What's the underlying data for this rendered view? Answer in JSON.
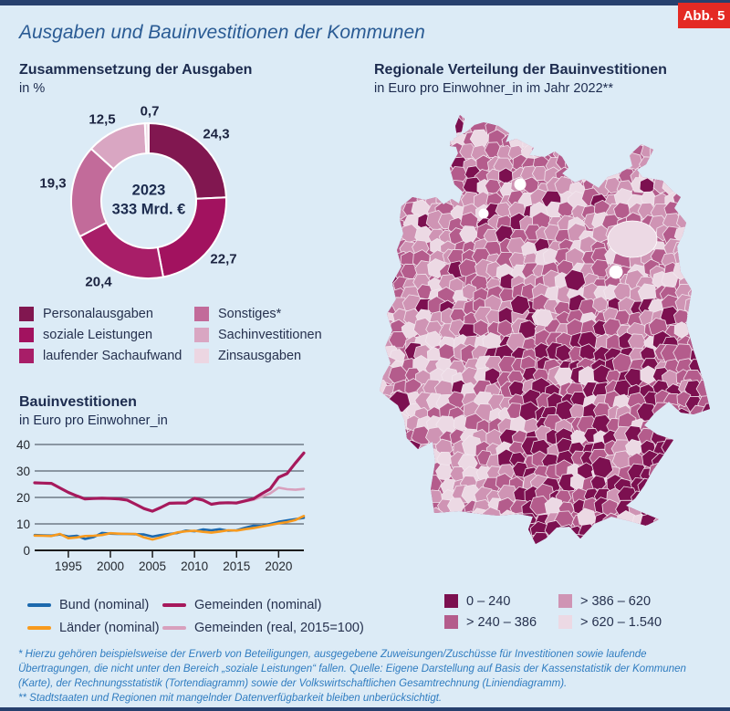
{
  "page": {
    "badge": "Abb. 5",
    "title": "Ausgaben und Bauinvestitionen der Kommunen"
  },
  "chart_data": [
    {
      "type": "pie",
      "title": "Zusammensetzung der Ausgaben",
      "subtitle": "in %",
      "unit": "%",
      "center_label": [
        "2023",
        "333 Mrd. €"
      ],
      "slices": [
        {
          "label": "Personalausgaben",
          "value": 24.3,
          "display": "24,3",
          "color": "#811750"
        },
        {
          "label": "soziale Leistungen",
          "value": 22.7,
          "display": "22,7",
          "color": "#a2125f"
        },
        {
          "label": "laufender Sachaufwand",
          "value": 20.4,
          "display": "20,4",
          "color": "#a81e68"
        },
        {
          "label": "Sonstiges*",
          "value": 19.3,
          "display": "19,3",
          "color": "#c26b9a"
        },
        {
          "label": "Sachinvestitionen",
          "value": 12.5,
          "display": "12,5",
          "color": "#d9a6c2"
        },
        {
          "label": "Zinsausgaben",
          "value": 0.7,
          "display": "0,7",
          "color": "#ecd6e2"
        }
      ]
    },
    {
      "type": "line",
      "title": "Bauinvestitionen",
      "subtitle": "in Euro pro Einwohner_in",
      "ylim": [
        0,
        40
      ],
      "y_ticks": [
        0,
        10,
        20,
        30,
        40
      ],
      "x_ticks": [
        1995,
        2000,
        2005,
        2010,
        2015,
        2020
      ],
      "x_range": [
        1991,
        2023
      ],
      "grid": true,
      "legend_position": "bottom",
      "series": [
        {
          "name": "Bund (nominal)",
          "color": "#1c69ae",
          "start_year": 1991,
          "values": [
            5.8,
            5.7,
            5.6,
            6.0,
            5.2,
            5.5,
            4.3,
            5.0,
            6.6,
            6.3,
            6.2,
            6.2,
            6.1,
            6.0,
            5.2,
            5.8,
            6.2,
            6.6,
            7.5,
            7.2,
            7.9,
            7.6,
            8.0,
            7.4,
            7.6,
            8.5,
            9.3,
            9.2,
            10.0,
            10.8,
            11.3,
            11.8,
            12.3
          ]
        },
        {
          "name": "Länder (nominal)",
          "color": "#f89a1e",
          "start_year": 1991,
          "values": [
            5.6,
            5.5,
            5.4,
            6.2,
            4.6,
            4.9,
            5.4,
            5.5,
            5.8,
            6.5,
            6.3,
            6.2,
            6.2,
            4.9,
            4.1,
            4.9,
            5.9,
            6.8,
            7.2,
            7.4,
            7.0,
            6.7,
            7.1,
            7.6,
            7.5,
            8.0,
            8.4,
            9.0,
            9.6,
            10.2,
            10.7,
            11.5,
            13.0
          ]
        },
        {
          "name": "Gemeinden (nominal)",
          "color": "#a6195c",
          "start_year": 1991,
          "values": [
            25.5,
            25.4,
            25.3,
            23.6,
            21.9,
            20.6,
            19.4,
            19.6,
            19.7,
            19.6,
            19.4,
            19.0,
            17.4,
            15.8,
            14.8,
            16.2,
            17.8,
            17.9,
            17.9,
            19.7,
            19.0,
            17.4,
            17.9,
            18.0,
            17.9,
            18.7,
            19.5,
            21.4,
            23.2,
            27.6,
            29.0,
            33.0,
            36.8
          ]
        },
        {
          "name": "Gemeinden (real, 2015=100)",
          "color": "#d8a0bd",
          "start_year": 2014,
          "values": [
            18.0,
            17.9,
            18.5,
            19.1,
            20.3,
            21.5,
            23.7,
            23.1,
            22.9,
            23.2
          ]
        }
      ]
    },
    {
      "type": "heatmap",
      "title": "Regionale Verteilung der Bauinvestitionen",
      "subtitle": "in Euro pro Einwohner_in im Jahr 2022**",
      "region": "Deutschland (Kreise)",
      "value_encoding": "darker = lower Euro pro Einwohner_in",
      "legend_classes": [
        {
          "range": "0 – 240",
          "color": "#7c1050"
        },
        {
          "range": "> 240 – 386",
          "color": "#b45c8c"
        },
        {
          "range": "> 386 – 620",
          "color": "#cf94b4"
        },
        {
          "range": "> 620 – 1.540",
          "color": "#ecd9e4"
        }
      ]
    }
  ],
  "footnotes": {
    "fn1": "* Hierzu gehören beispielsweise der Erwerb von Beteiligungen, ausgegebene Zuweisungen/Zuschüsse für Investitionen sowie laufende Übertragungen, die nicht unter den Bereich „soziale Leistungen“ fallen. Quelle: Eigene Darstellung auf Basis der Kassenstatistik der Kommunen (Karte), der Rechnungsstatistik (Tortendiagramm) sowie der Volkswirtschaftlichen Gesamtrechnung (Liniendiagramm).",
    "fn2": "** Stadtstaaten und Regionen mit mangelnder Datenverfügbarkeit bleiben unberücksichtigt."
  }
}
